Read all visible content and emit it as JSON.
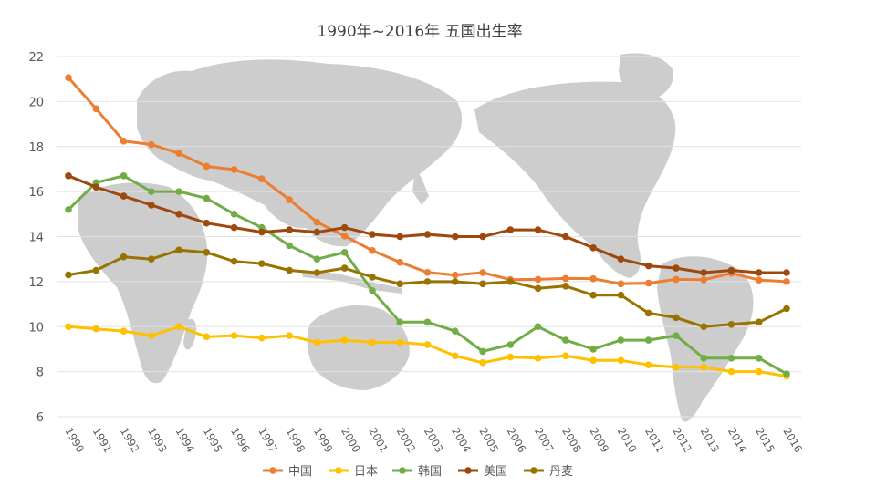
{
  "chart_data": {
    "type": "line",
    "title": "1990年~2016年 五国出生率",
    "categories": [
      "1990",
      "1991",
      "1992",
      "1993",
      "1994",
      "1995",
      "1996",
      "1997",
      "1998",
      "1999",
      "2000",
      "2001",
      "2002",
      "2003",
      "2004",
      "2005",
      "2006",
      "2007",
      "2008",
      "2009",
      "2010",
      "2011",
      "2012",
      "2013",
      "2014",
      "2015",
      "2016"
    ],
    "ylim": [
      6,
      22
    ],
    "yticks": [
      "6",
      "8",
      "10",
      "12",
      "14",
      "16",
      "18",
      "20",
      "22"
    ],
    "grid": true,
    "legend_position": "bottom",
    "background": "world-map",
    "series": [
      {
        "name": "中国",
        "color": "#ED7D31",
        "values": [
          21.06,
          19.68,
          18.24,
          18.09,
          17.7,
          17.12,
          16.98,
          16.57,
          15.64,
          14.64,
          14.03,
          13.38,
          12.86,
          12.41,
          12.29,
          12.4,
          12.09,
          12.1,
          12.14,
          12.13,
          11.9,
          11.93,
          12.1,
          12.08,
          12.37,
          12.07,
          12.0
        ]
      },
      {
        "name": "日本",
        "color": "#FFC000",
        "values": [
          10.0,
          9.9,
          9.8,
          9.6,
          10.0,
          9.55,
          9.6,
          9.5,
          9.6,
          9.3,
          9.4,
          9.3,
          9.3,
          9.2,
          8.7,
          8.4,
          8.65,
          8.6,
          8.7,
          8.5,
          8.5,
          8.3,
          8.2,
          8.2,
          8.0,
          8.0,
          7.8
        ]
      },
      {
        "name": "韩国",
        "color": "#70AD47",
        "values": [
          15.2,
          16.4,
          16.7,
          16.0,
          16.0,
          15.7,
          15.0,
          14.4,
          13.6,
          13.0,
          13.3,
          11.6,
          10.2,
          10.2,
          9.8,
          8.9,
          9.2,
          10.0,
          9.4,
          9.0,
          9.4,
          9.4,
          9.6,
          8.6,
          8.6,
          8.6,
          7.9
        ]
      },
      {
        "name": "美国",
        "color": "#9E480E",
        "values": [
          16.7,
          16.2,
          15.8,
          15.4,
          15.0,
          14.6,
          14.4,
          14.2,
          14.3,
          14.2,
          14.4,
          14.1,
          14.0,
          14.1,
          14.0,
          14.0,
          14.3,
          14.3,
          14.0,
          13.5,
          13.0,
          12.7,
          12.6,
          12.4,
          12.5,
          12.4,
          12.4
        ]
      },
      {
        "name": "丹麦",
        "color": "#997300",
        "values": [
          12.3,
          12.5,
          13.1,
          13.0,
          13.4,
          13.3,
          12.9,
          12.8,
          12.5,
          12.4,
          12.6,
          12.2,
          11.9,
          12.0,
          12.0,
          11.9,
          12.0,
          11.7,
          11.8,
          11.4,
          11.4,
          10.6,
          10.4,
          10.0,
          10.1,
          10.2,
          10.8
        ]
      }
    ]
  }
}
